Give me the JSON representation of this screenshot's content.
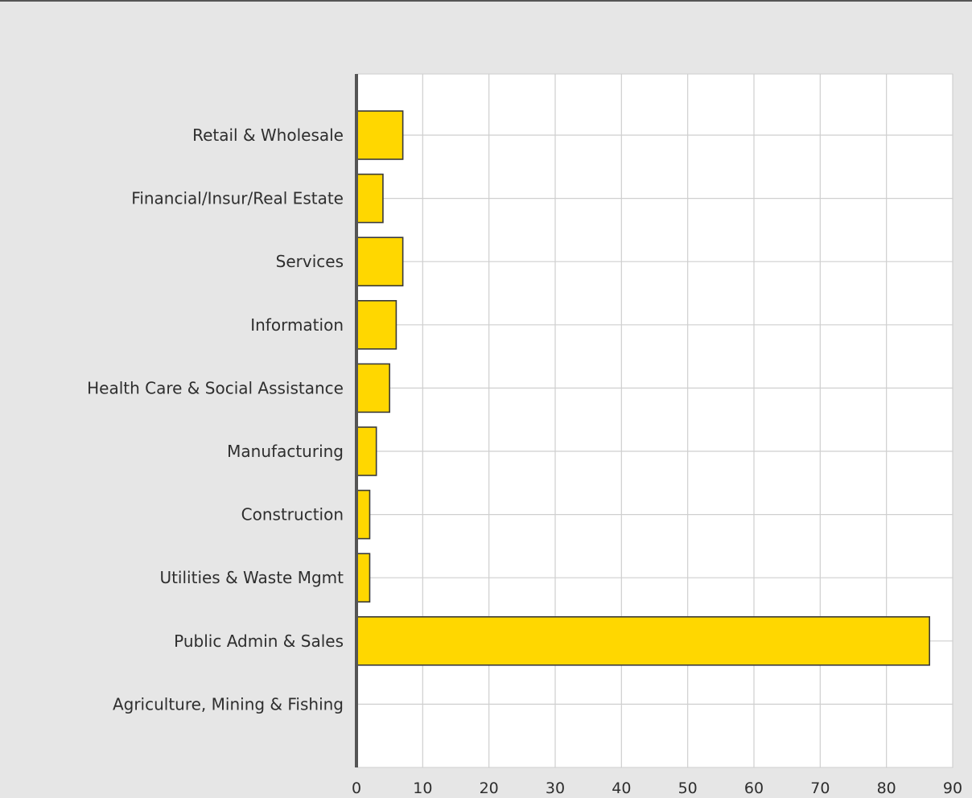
{
  "chart_data": {
    "type": "bar",
    "orientation": "horizontal",
    "categories": [
      "Retail & Wholesale",
      "Financial/Insur/Real Estate",
      "Services",
      "Information",
      "Health Care & Social Assistance",
      "Manufacturing",
      "Construction",
      "Utilities & Waste Mgmt",
      "Public Admin & Sales",
      "Agriculture, Mining & Fishing"
    ],
    "values": [
      7,
      4,
      7,
      6,
      5,
      3,
      2,
      2,
      86.5,
      0
    ],
    "xlim": [
      0,
      90
    ],
    "xticks": [
      0,
      10,
      20,
      30,
      40,
      50,
      60,
      70,
      80,
      90
    ],
    "title": "",
    "xlabel": "",
    "ylabel": "",
    "grid": true,
    "legend": "none",
    "colors": {
      "bar_fill": "#ffd700",
      "bar_stroke": "#3a3a3a",
      "plot_bg": "#ffffff",
      "page_bg": "#e6e6e6",
      "grid": "#cfcfcf",
      "axis": "#555555"
    }
  }
}
